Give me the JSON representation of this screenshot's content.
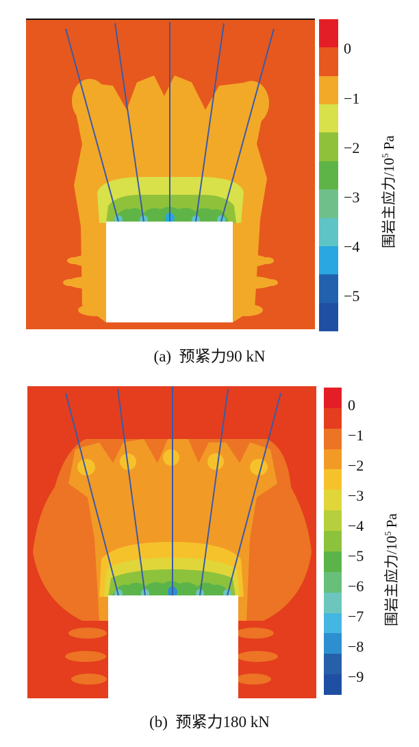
{
  "chart_data": [
    {
      "type": "heatmap",
      "panel_label": "(a)",
      "caption": "预紧力90 kN",
      "colorbar": {
        "title_prefix": "围岩主应力/10",
        "title_exp": "5",
        "title_unit": "Pa",
        "tick_labels": [
          "0",
          "−1",
          "−2",
          "−3",
          "−4",
          "−5"
        ],
        "tick_values": [
          0,
          -1,
          -2,
          -3,
          -4,
          -5
        ],
        "range": [
          -5.7,
          0.6
        ],
        "colors": [
          "#e41e26",
          "#e6581e",
          "#f2a928",
          "#d8e04a",
          "#8fc23a",
          "#5fb447",
          "#6fbf8a",
          "#5ec4c6",
          "#2aa7e0",
          "#2161ae",
          "#1f4fa3"
        ]
      },
      "anchor_count": 5,
      "opening": "rectangular tunnel at bottom centre"
    },
    {
      "type": "heatmap",
      "panel_label": "(b)",
      "caption": "预紧力180 kN",
      "colorbar": {
        "title_prefix": "围岩主应力/10",
        "title_exp": "5",
        "title_unit": "Pa",
        "tick_labels": [
          "0",
          "−1",
          "−2",
          "−3",
          "−4",
          "−5",
          "−6",
          "−7",
          "−8",
          "−9"
        ],
        "tick_values": [
          0,
          -1,
          -2,
          -3,
          -4,
          -5,
          -6,
          -7,
          -8,
          -9
        ],
        "range": [
          -9.6,
          0.6
        ],
        "colors": [
          "#e41e26",
          "#e43e1e",
          "#ec7424",
          "#f29a26",
          "#f6c22c",
          "#e0d63a",
          "#b6cf3c",
          "#8cc23c",
          "#5bb44a",
          "#67bf7a",
          "#6cc6be",
          "#44b6e2",
          "#2d8fd0",
          "#2660a8",
          "#1f4fa3"
        ]
      },
      "anchor_count": 5,
      "opening": "rectangular tunnel at bottom centre"
    }
  ]
}
